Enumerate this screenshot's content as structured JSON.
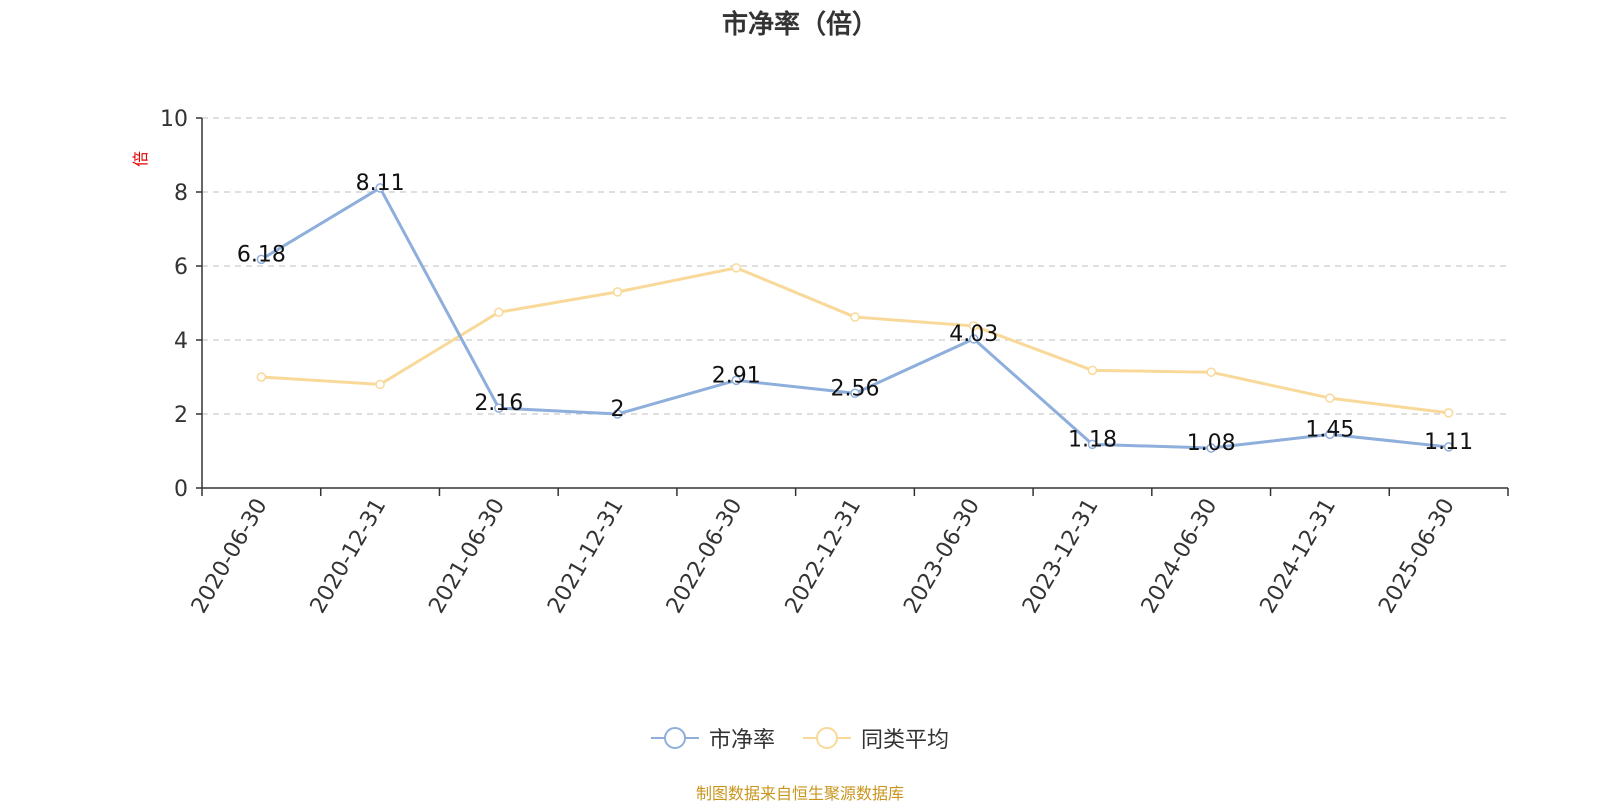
{
  "title": "市净率（倍）",
  "source_note": "制图数据来自恒生聚源数据库",
  "colors": {
    "series1": "#8eaedc",
    "series2": "#f9d99a",
    "grid": "#cccccc",
    "axis": "#333333",
    "unit": "#e60000"
  },
  "chart_data": {
    "type": "line",
    "title": "市净率（倍）",
    "ylabel": "倍",
    "ylim": [
      0,
      10
    ],
    "yticks": [
      0,
      2,
      4,
      6,
      8,
      10
    ],
    "grid": true,
    "legend_position": "bottom",
    "categories": [
      "2020-06-30",
      "2020-12-31",
      "2021-06-30",
      "2021-12-31",
      "2022-06-30",
      "2022-12-31",
      "2023-06-30",
      "2023-12-31",
      "2024-06-30",
      "2024-12-31",
      "2025-06-30"
    ],
    "series": [
      {
        "name": "市净率",
        "values": [
          6.18,
          8.11,
          2.16,
          2,
          2.91,
          2.56,
          4.03,
          1.18,
          1.08,
          1.45,
          1.11
        ],
        "labels": [
          "6.18",
          "8.11",
          "2.16",
          "2",
          "2.91",
          "2.56",
          "4.03",
          "1.18",
          "1.08",
          "1.45",
          "1.11"
        ]
      },
      {
        "name": "同类平均",
        "values": [
          3.0,
          2.8,
          4.75,
          5.3,
          5.95,
          4.62,
          4.38,
          3.18,
          3.13,
          2.43,
          2.03
        ]
      }
    ]
  }
}
